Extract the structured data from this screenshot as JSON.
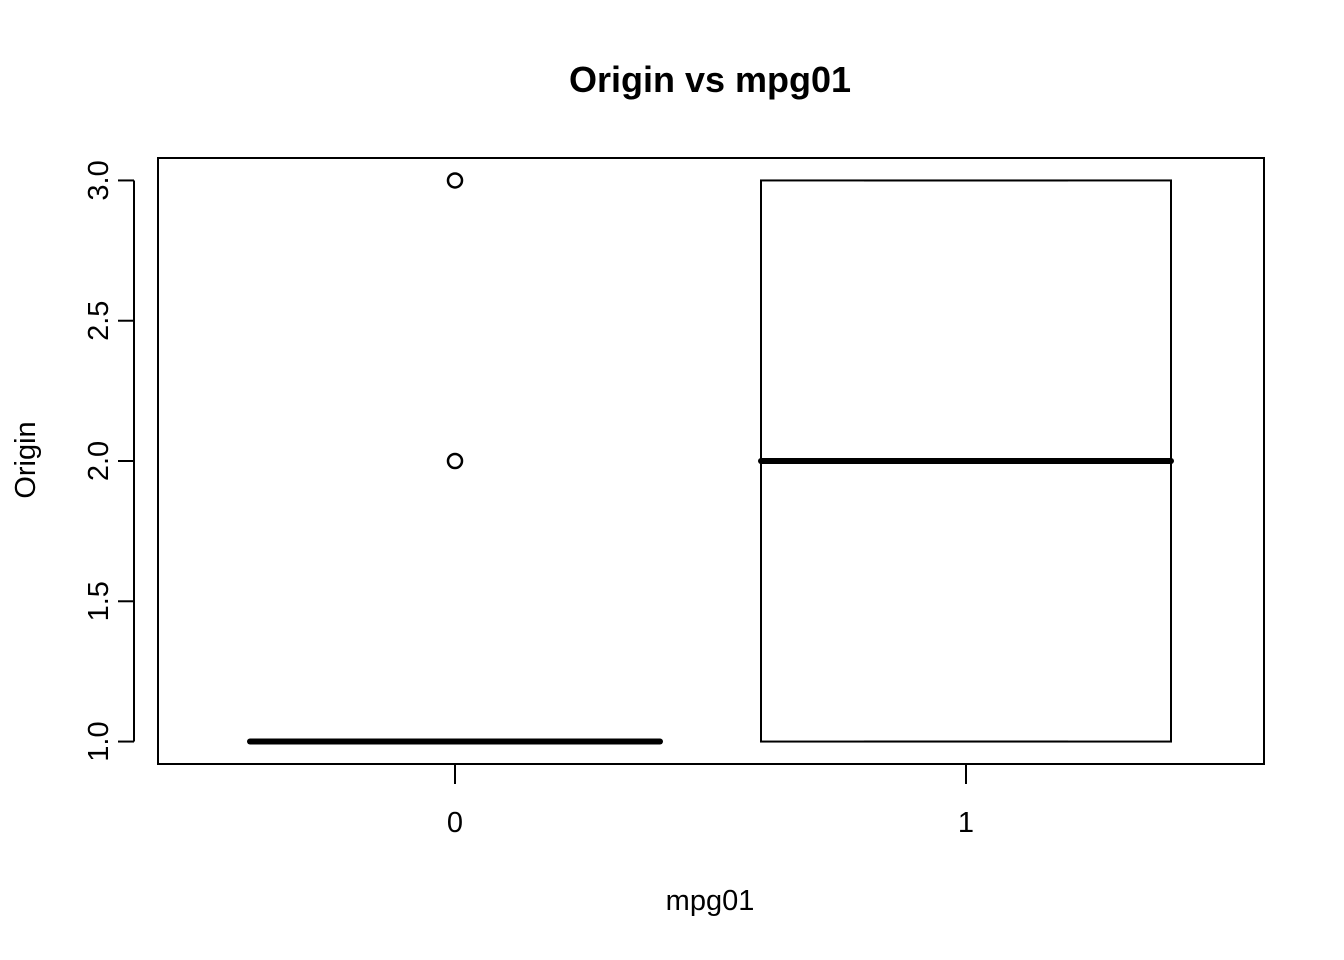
{
  "chart_data": {
    "type": "boxplot",
    "title": "Origin vs mpg01",
    "xlabel": "mpg01",
    "ylabel": "Origin",
    "categories": [
      "0",
      "1"
    ],
    "boxes": [
      {
        "category": "0",
        "min": 1.0,
        "q1": 1.0,
        "median": 1.0,
        "q3": 1.0,
        "max": 1.0,
        "outliers": [
          2.0,
          3.0
        ]
      },
      {
        "category": "1",
        "min": 1.0,
        "q1": 1.0,
        "median": 2.0,
        "q3": 3.0,
        "max": 3.0,
        "outliers": []
      }
    ],
    "ylim": [
      0.92,
      3.08
    ],
    "yticks": [
      "1.0",
      "1.5",
      "2.0",
      "2.5",
      "3.0"
    ],
    "grid": false,
    "colors": {
      "box_fill": "#ffffff",
      "stroke": "#000000"
    }
  }
}
